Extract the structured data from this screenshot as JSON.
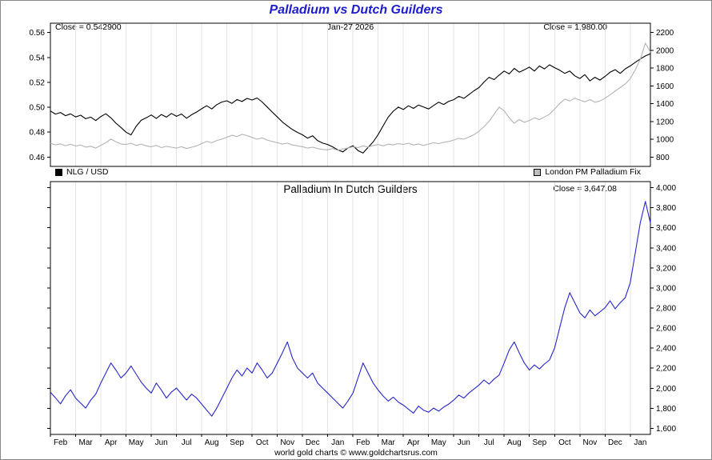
{
  "header": {
    "title": "Palladium vs Dutch Guilders"
  },
  "top_panel": {
    "close_left": "Close = 0.542900",
    "date_label": "Jan-27  2026",
    "close_right": "Close = 1,980.00",
    "legend": [
      {
        "label": "NLG / USD",
        "color": "#000000"
      },
      {
        "label": "London PM Palladium Fix",
        "color": "#bdbdbd"
      }
    ]
  },
  "bottom_panel": {
    "title": "Palladium In Dutch Guilders",
    "close_label": "Close = 3,647.08"
  },
  "footer": {
    "text": "world gold charts © www.goldchartsrus.com"
  },
  "colors": {
    "title": "#1d1dcf",
    "nlg_usd_line": "#000000",
    "palladium_fix_line": "#b3b3b3",
    "palladium_nlg_line": "#2626cc",
    "grid": "#e4e4e4",
    "border": "#000000"
  },
  "x_axis": {
    "labels": [
      "Feb",
      "Mar",
      "Apr",
      "May",
      "Jun",
      "Jul",
      "Aug",
      "Sep",
      "Oct",
      "Nov",
      "Dec",
      "Jan",
      "Feb",
      "Mar",
      "Apr",
      "May",
      "Jun",
      "Jul",
      "Aug",
      "Sep",
      "Oct",
      "Nov",
      "Dec",
      "Jan"
    ]
  },
  "chart_data": [
    {
      "type": "line",
      "panel": "top",
      "title": "Palladium vs Dutch Guilders",
      "legend_position": "below",
      "grid": "vertical-monthly",
      "close_values": {
        "nlg_usd": 0.5429,
        "london_pm_palladium_fix": 1980.0
      },
      "left_axis": {
        "label": "NLG / USD",
        "ticks": [
          "0.56",
          "0.54",
          "0.52",
          "0.50",
          "0.48",
          "0.46"
        ],
        "range": [
          0.4525,
          0.5675
        ]
      },
      "right_axis": {
        "label": "London PM Palladium Fix (USD)",
        "ticks": [
          "2200",
          "2000",
          "1800",
          "1600",
          "1400",
          "1200",
          "1000",
          "800"
        ],
        "range": [
          695,
          2305
        ]
      },
      "series": [
        {
          "name": "NLG / USD",
          "axis": "left",
          "color": "#000000",
          "values": [
            0.497,
            0.4945,
            0.4958,
            0.4932,
            0.4947,
            0.4922,
            0.4936,
            0.4908,
            0.4921,
            0.4893,
            0.4925,
            0.4948,
            0.4915,
            0.4872,
            0.4838,
            0.48,
            0.4778,
            0.4846,
            0.4895,
            0.4915,
            0.4938,
            0.491,
            0.4942,
            0.4921,
            0.495,
            0.4927,
            0.4946,
            0.4912,
            0.494,
            0.4962,
            0.4988,
            0.5012,
            0.4986,
            0.5021,
            0.5042,
            0.5052,
            0.5031,
            0.5062,
            0.5046,
            0.5071,
            0.5058,
            0.5074,
            0.5042,
            0.5002,
            0.4961,
            0.4922,
            0.4882,
            0.4851,
            0.4821,
            0.4798,
            0.4779,
            0.4752,
            0.4771,
            0.4732,
            0.4712,
            0.4701,
            0.4682,
            0.4658,
            0.4641,
            0.4672,
            0.4691,
            0.4652,
            0.4632,
            0.4678,
            0.4721,
            0.4781,
            0.4852,
            0.4921,
            0.4968,
            0.5001,
            0.4982,
            0.5012,
            0.4991,
            0.5018,
            0.5002,
            0.4986,
            0.5014,
            0.5041,
            0.5022,
            0.5048,
            0.5061,
            0.5088,
            0.5072,
            0.5101,
            0.5132,
            0.5158,
            0.5202,
            0.5241,
            0.5222,
            0.5258,
            0.5291,
            0.5268,
            0.5312,
            0.5282,
            0.5301,
            0.5322,
            0.5291,
            0.5331,
            0.5308,
            0.5341,
            0.5318,
            0.5298,
            0.5272,
            0.5291,
            0.5252,
            0.5231,
            0.5262,
            0.5212,
            0.5241,
            0.5218,
            0.5248,
            0.5281,
            0.5302,
            0.5272,
            0.5308,
            0.5332,
            0.5361,
            0.5388,
            0.5412,
            0.5429
          ]
        },
        {
          "name": "London PM Palladium Fix",
          "axis": "right",
          "color": "#b3b3b3",
          "values": [
            955,
            938,
            948,
            928,
            944,
            924,
            936,
            912,
            922,
            901,
            932,
            962,
            1002,
            972,
            948,
            941,
            956,
            931,
            946,
            926,
            916,
            931,
            906,
            921,
            911,
            901,
            916,
            896,
            911,
            926,
            951,
            976,
            961,
            986,
            1002,
            1022,
            1046,
            1031,
            1056,
            1041,
            1021,
            1001,
            1016,
            991,
            976,
            961,
            946,
            956,
            936,
            926,
            916,
            901,
            911,
            896,
            886,
            881,
            896,
            876,
            891,
            901,
            916,
            906,
            926,
            911,
            931,
            941,
            926,
            946,
            936,
            951,
            941,
            956,
            936,
            946,
            931,
            946,
            961,
            951,
            966,
            976,
            991,
            1011,
            1001,
            1026,
            1051,
            1091,
            1141,
            1201,
            1281,
            1361,
            1321,
            1241,
            1181,
            1221,
            1191,
            1211,
            1241,
            1221,
            1251,
            1281,
            1341,
            1401,
            1451,
            1431,
            1461,
            1441,
            1421,
            1446,
            1416,
            1431,
            1461,
            1501,
            1541,
            1581,
            1621,
            1681,
            1781,
            1901,
            2081,
            1980
          ]
        }
      ]
    },
    {
      "type": "line",
      "panel": "bottom",
      "title": "Palladium In Dutch Guilders",
      "grid": "vertical-monthly",
      "close_values": {
        "palladium_in_nlg": 3647.08
      },
      "right_axis": {
        "label": "Palladium in Dutch Guilders",
        "ticks": [
          "4,000",
          "3,800",
          "3,600",
          "3,400",
          "3,200",
          "3,000",
          "2,800",
          "2,600",
          "2,400",
          "2,200",
          "2,000",
          "1,800",
          "1,600"
        ],
        "range": [
          1540,
          4060
        ]
      },
      "series": [
        {
          "name": "Palladium In Dutch Guilders",
          "axis": "right",
          "color": "#2626cc",
          "values": [
            1960,
            1905,
            1845,
            1925,
            1985,
            1902,
            1852,
            1802,
            1882,
            1942,
            2052,
            2152,
            2252,
            2182,
            2102,
            2152,
            2222,
            2142,
            2062,
            2002,
            1952,
            2052,
            1982,
            1902,
            1962,
            2002,
            1942,
            1882,
            1942,
            1902,
            1842,
            1782,
            1722,
            1802,
            1902,
            2002,
            2102,
            2182,
            2122,
            2202,
            2152,
            2252,
            2182,
            2102,
            2152,
            2252,
            2352,
            2462,
            2302,
            2202,
            2152,
            2102,
            2152,
            2052,
            2002,
            1952,
            1902,
            1852,
            1802,
            1872,
            1952,
            2102,
            2252,
            2152,
            2052,
            1982,
            1922,
            1872,
            1912,
            1862,
            1832,
            1792,
            1752,
            1822,
            1782,
            1762,
            1802,
            1772,
            1812,
            1842,
            1882,
            1932,
            1902,
            1952,
            1992,
            2032,
            2082,
            2042,
            2092,
            2132,
            2252,
            2382,
            2462,
            2352,
            2252,
            2182,
            2232,
            2192,
            2242,
            2282,
            2402,
            2602,
            2802,
            2952,
            2852,
            2752,
            2702,
            2782,
            2722,
            2762,
            2802,
            2872,
            2792,
            2852,
            2902,
            3052,
            3352,
            3652,
            3862,
            3647
          ]
        }
      ]
    }
  ]
}
